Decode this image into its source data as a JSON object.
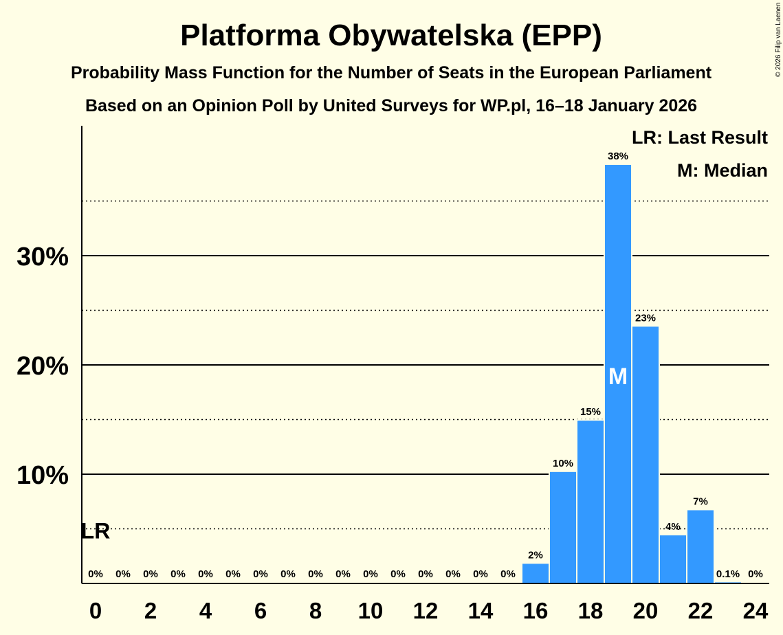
{
  "chart_data": {
    "type": "bar",
    "title": "Platforma Obywatelska (EPP)",
    "subtitle": "Probability Mass Function for the Number of Seats in the European Parliament",
    "subtitle2": "Based on an Opinion Poll by United Surveys for WP.pl, 16–18 January 2026",
    "copyright": "© 2026 Filip van Laenen",
    "x": [
      0,
      1,
      2,
      3,
      4,
      5,
      6,
      7,
      8,
      9,
      10,
      11,
      12,
      13,
      14,
      15,
      16,
      17,
      18,
      19,
      20,
      21,
      22,
      23,
      24
    ],
    "values": [
      0,
      0,
      0,
      0,
      0,
      0,
      0,
      0,
      0,
      0,
      0,
      0,
      0,
      0,
      0,
      0,
      1.8,
      10.2,
      14.9,
      38.3,
      23.5,
      4.4,
      6.7,
      0.1,
      0
    ],
    "value_labels": [
      "0%",
      "0%",
      "0%",
      "0%",
      "0%",
      "0%",
      "0%",
      "0%",
      "0%",
      "0%",
      "0%",
      "0%",
      "0%",
      "0%",
      "0%",
      "0%",
      "2%",
      "10%",
      "15%",
      "38%",
      "23%",
      "4%",
      "7%",
      "0.1%",
      "0%"
    ],
    "x_tick_labels": [
      "0",
      "2",
      "4",
      "6",
      "8",
      "10",
      "12",
      "14",
      "16",
      "18",
      "20",
      "22",
      "24"
    ],
    "x_tick_values": [
      0,
      2,
      4,
      6,
      8,
      10,
      12,
      14,
      16,
      18,
      20,
      22,
      24
    ],
    "y_tick_labels": [
      "10%",
      "20%",
      "30%"
    ],
    "y_tick_values": [
      10,
      20,
      30
    ],
    "y_dotted_values": [
      5,
      15,
      25,
      35
    ],
    "ylim": [
      0,
      42
    ],
    "xlabel": "",
    "ylabel": "",
    "bar_color": "#3399FF",
    "last_result_seat": 0,
    "last_result_label": "LR",
    "median_seat": 19,
    "median_label": "M",
    "legend": {
      "position": "top-right",
      "lr_text": "LR: Last Result",
      "median_text": "M: Median"
    }
  }
}
